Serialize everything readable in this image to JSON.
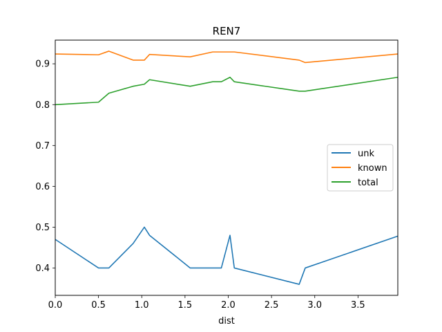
{
  "chart_data": {
    "type": "line",
    "title": "REN7",
    "xlabel": "dist",
    "ylabel": "",
    "xlim": [
      0.0,
      3.96
    ],
    "ylim": [
      0.333,
      0.958
    ],
    "xticks": [
      0.0,
      0.5,
      1.0,
      1.5,
      2.0,
      2.5,
      3.0,
      3.5
    ],
    "xtick_labels": [
      "0.0",
      "0.5",
      "1.0",
      "1.5",
      "2.0",
      "2.5",
      "3.0",
      "3.5"
    ],
    "yticks": [
      0.4,
      0.5,
      0.6,
      0.7,
      0.8,
      0.9
    ],
    "ytick_labels": [
      "0.4",
      "0.5",
      "0.6",
      "0.7",
      "0.8",
      "0.9"
    ],
    "grid": false,
    "legend_position": "center-right",
    "series": [
      {
        "name": "unk",
        "color": "#1f77b4",
        "x": [
          0.0,
          0.5,
          0.62,
          0.9,
          1.03,
          1.09,
          1.56,
          1.92,
          2.02,
          2.07,
          2.82,
          2.89,
          3.96
        ],
        "y": [
          0.47,
          0.4,
          0.4,
          0.46,
          0.5,
          0.48,
          0.4,
          0.4,
          0.48,
          0.4,
          0.36,
          0.4,
          0.478
        ]
      },
      {
        "name": "known",
        "color": "#ff7f0e",
        "x": [
          0.0,
          0.5,
          0.62,
          0.9,
          1.03,
          1.09,
          1.56,
          1.82,
          2.07,
          2.82,
          2.89,
          3.96
        ],
        "y": [
          0.924,
          0.922,
          0.931,
          0.909,
          0.909,
          0.923,
          0.917,
          0.929,
          0.929,
          0.909,
          0.903,
          0.924
        ]
      },
      {
        "name": "total",
        "color": "#2ca02c",
        "x": [
          0.0,
          0.5,
          0.62,
          0.9,
          1.03,
          1.09,
          1.56,
          1.82,
          1.92,
          2.02,
          2.07,
          2.82,
          2.89,
          3.96
        ],
        "y": [
          0.8,
          0.806,
          0.828,
          0.845,
          0.85,
          0.861,
          0.845,
          0.856,
          0.856,
          0.867,
          0.856,
          0.833,
          0.833,
          0.867
        ]
      }
    ]
  }
}
